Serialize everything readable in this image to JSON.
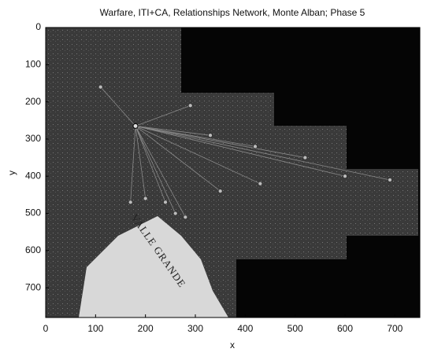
{
  "chart_data": {
    "type": "network",
    "title": "Warfare, ITI+CA, Relationships Network, Monte Alban; Phase 5",
    "xlabel": "x",
    "ylabel": "y",
    "xlim": [
      0,
      750
    ],
    "ylim": [
      0,
      780
    ],
    "xticks": [
      0,
      100,
      200,
      300,
      400,
      500,
      600,
      700
    ],
    "yticks": [
      0,
      100,
      200,
      300,
      400,
      500,
      600,
      700
    ],
    "hub": {
      "x": 180,
      "y": 265
    },
    "nodes": {
      "x": [
        290,
        330,
        420,
        520,
        600,
        690,
        430,
        350,
        240,
        200,
        170,
        260,
        280,
        110
      ],
      "y": [
        210,
        290,
        320,
        350,
        400,
        410,
        420,
        440,
        470,
        460,
        470,
        500,
        510,
        160
      ]
    },
    "annotations": [
      "VALLE GRANDE"
    ]
  }
}
